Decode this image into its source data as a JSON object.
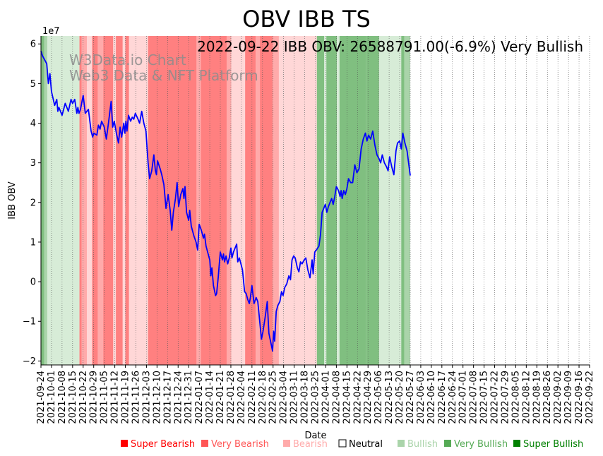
{
  "chart_data": {
    "type": "line",
    "title": "OBV IBB TS",
    "annotation": "2022-09-22 IBB OBV: 26588791.00(-6.9%) Very Bullish",
    "watermark": [
      "W3Data.io Chart",
      "Web3 Data & NFT Platform"
    ],
    "xlabel": "Date",
    "ylabel": "IBB OBV",
    "y_exponent": "1e7",
    "y_ticks": [
      "−2",
      "−1",
      "0",
      "1",
      "2",
      "3",
      "4",
      "5",
      "6"
    ],
    "ylim": [
      -2.1,
      6.2
    ],
    "grid": "vertical-dotted",
    "line_color": "#0000ff",
    "x_ticks": [
      "2021-09-24",
      "2021-10-01",
      "2021-10-08",
      "2021-10-15",
      "2021-10-22",
      "2021-10-29",
      "2021-11-05",
      "2021-11-12",
      "2021-11-19",
      "2021-11-26",
      "2021-12-03",
      "2021-12-10",
      "2021-12-17",
      "2021-12-24",
      "2021-12-31",
      "2022-01-07",
      "2022-01-14",
      "2022-01-21",
      "2022-01-28",
      "2022-02-04",
      "2022-02-11",
      "2022-02-18",
      "2022-02-25",
      "2022-03-04",
      "2022-03-11",
      "2022-03-18",
      "2022-03-25",
      "2022-04-01",
      "2022-04-08",
      "2022-04-15",
      "2022-04-22",
      "2022-04-29",
      "2022-05-06",
      "2022-05-13",
      "2022-05-20",
      "2022-05-27",
      "2022-06-03",
      "2022-06-10",
      "2022-06-17",
      "2022-06-24",
      "2022-07-01",
      "2022-07-08",
      "2022-07-15",
      "2022-07-22",
      "2022-07-29",
      "2022-08-05",
      "2022-08-12",
      "2022-08-19",
      "2022-08-26",
      "2022-09-02",
      "2022-09-09",
      "2022-09-16",
      "2022-09-22"
    ],
    "series": [
      {
        "values": [
          [
            0,
            5.82
          ],
          [
            0.15,
            5.7
          ],
          [
            0.35,
            5.6
          ],
          [
            0.55,
            5.5
          ],
          [
            0.7,
            5.0
          ],
          [
            0.85,
            5.25
          ],
          [
            1.0,
            4.8
          ],
          [
            1.3,
            4.45
          ],
          [
            1.5,
            4.6
          ],
          [
            1.6,
            4.3
          ],
          [
            1.7,
            4.4
          ],
          [
            1.85,
            4.3
          ],
          [
            2.0,
            4.2
          ],
          [
            2.3,
            4.5
          ],
          [
            2.6,
            4.3
          ],
          [
            2.85,
            4.6
          ],
          [
            3.0,
            4.5
          ],
          [
            3.2,
            4.6
          ],
          [
            3.4,
            4.25
          ],
          [
            3.5,
            4.4
          ],
          [
            3.6,
            4.25
          ],
          [
            3.75,
            4.35
          ],
          [
            4.0,
            4.7
          ],
          [
            4.2,
            4.25
          ],
          [
            4.5,
            4.35
          ],
          [
            4.75,
            3.8
          ],
          [
            4.9,
            3.65
          ],
          [
            5.0,
            3.75
          ],
          [
            5.3,
            3.7
          ],
          [
            5.45,
            3.95
          ],
          [
            5.6,
            3.85
          ],
          [
            5.75,
            4.05
          ],
          [
            6.0,
            3.9
          ],
          [
            6.2,
            3.6
          ],
          [
            6.4,
            4.0
          ],
          [
            6.65,
            4.55
          ],
          [
            6.8,
            3.9
          ],
          [
            6.95,
            4.05
          ],
          [
            7.15,
            3.75
          ],
          [
            7.35,
            3.5
          ],
          [
            7.5,
            3.9
          ],
          [
            7.65,
            3.65
          ],
          [
            7.85,
            4.0
          ],
          [
            7.95,
            3.75
          ],
          [
            8.05,
            4.05
          ],
          [
            8.15,
            3.8
          ],
          [
            8.3,
            4.2
          ],
          [
            8.5,
            4.05
          ],
          [
            8.65,
            4.15
          ],
          [
            8.8,
            4.1
          ],
          [
            8.95,
            4.25
          ],
          [
            9.2,
            4.1
          ],
          [
            9.35,
            4.0
          ],
          [
            9.55,
            4.3
          ],
          [
            9.75,
            4.0
          ],
          [
            9.95,
            3.8
          ],
          [
            10.15,
            3.0
          ],
          [
            10.3,
            2.6
          ],
          [
            10.5,
            2.8
          ],
          [
            10.7,
            3.2
          ],
          [
            10.85,
            2.8
          ],
          [
            10.95,
            2.7
          ],
          [
            11.05,
            3.05
          ],
          [
            11.3,
            2.85
          ],
          [
            11.45,
            2.7
          ],
          [
            11.65,
            2.45
          ],
          [
            11.85,
            1.85
          ],
          [
            12.05,
            2.2
          ],
          [
            12.25,
            1.8
          ],
          [
            12.4,
            1.3
          ],
          [
            12.55,
            1.75
          ],
          [
            12.75,
            2.1
          ],
          [
            12.9,
            2.5
          ],
          [
            13.05,
            1.9
          ],
          [
            13.25,
            2.2
          ],
          [
            13.45,
            2.35
          ],
          [
            13.55,
            2.1
          ],
          [
            13.65,
            2.4
          ],
          [
            13.8,
            1.75
          ],
          [
            14.0,
            1.55
          ],
          [
            14.1,
            1.8
          ],
          [
            14.25,
            1.4
          ],
          [
            14.5,
            1.15
          ],
          [
            14.7,
            1.0
          ],
          [
            14.85,
            0.8
          ],
          [
            15.0,
            1.45
          ],
          [
            15.2,
            1.3
          ],
          [
            15.4,
            1.1
          ],
          [
            15.5,
            1.2
          ],
          [
            15.65,
            0.9
          ],
          [
            15.85,
            0.7
          ],
          [
            16.0,
            0.55
          ],
          [
            16.1,
            0.15
          ],
          [
            16.2,
            0.35
          ],
          [
            16.35,
            -0.1
          ],
          [
            16.55,
            -0.35
          ],
          [
            16.65,
            -0.3
          ],
          [
            16.8,
            0.1
          ],
          [
            17.0,
            0.75
          ],
          [
            17.2,
            0.55
          ],
          [
            17.3,
            0.7
          ],
          [
            17.4,
            0.5
          ],
          [
            17.55,
            0.65
          ],
          [
            17.7,
            0.45
          ],
          [
            17.85,
            0.6
          ],
          [
            18.0,
            0.85
          ],
          [
            18.1,
            0.6
          ],
          [
            18.25,
            0.75
          ],
          [
            18.4,
            0.85
          ],
          [
            18.55,
            0.95
          ],
          [
            18.65,
            0.5
          ],
          [
            18.8,
            0.6
          ],
          [
            18.95,
            0.45
          ],
          [
            19.1,
            0.3
          ],
          [
            19.3,
            -0.25
          ],
          [
            19.45,
            -0.3
          ],
          [
            19.6,
            -0.45
          ],
          [
            19.75,
            -0.55
          ],
          [
            19.85,
            -0.4
          ],
          [
            20.0,
            -0.1
          ],
          [
            20.2,
            -0.55
          ],
          [
            20.4,
            -0.4
          ],
          [
            20.55,
            -0.5
          ],
          [
            20.75,
            -1.05
          ],
          [
            20.9,
            -1.45
          ],
          [
            21.05,
            -1.25
          ],
          [
            21.25,
            -0.9
          ],
          [
            21.45,
            -0.5
          ],
          [
            21.6,
            -1.3
          ],
          [
            21.8,
            -1.55
          ],
          [
            21.95,
            -1.75
          ],
          [
            22.05,
            -1.25
          ],
          [
            22.15,
            -1.5
          ],
          [
            22.3,
            -0.75
          ],
          [
            22.45,
            -0.6
          ],
          [
            22.65,
            -0.5
          ],
          [
            22.8,
            -0.25
          ],
          [
            22.95,
            -0.35
          ],
          [
            23.1,
            -0.15
          ],
          [
            23.3,
            -0.05
          ],
          [
            23.5,
            0.15
          ],
          [
            23.65,
            0.05
          ],
          [
            23.8,
            0.55
          ],
          [
            23.95,
            0.65
          ],
          [
            24.1,
            0.6
          ],
          [
            24.3,
            0.35
          ],
          [
            24.45,
            0.25
          ],
          [
            24.6,
            0.5
          ],
          [
            24.75,
            0.45
          ],
          [
            24.95,
            0.55
          ],
          [
            25.1,
            0.6
          ],
          [
            25.3,
            0.3
          ],
          [
            25.5,
            0.1
          ],
          [
            25.7,
            0.55
          ],
          [
            25.8,
            0.2
          ],
          [
            25.95,
            0.75
          ],
          [
            26.1,
            0.8
          ],
          [
            26.35,
            0.9
          ],
          [
            26.5,
            1.2
          ],
          [
            26.65,
            1.75
          ],
          [
            26.8,
            1.85
          ],
          [
            26.95,
            1.95
          ],
          [
            27.1,
            1.75
          ],
          [
            27.25,
            1.9
          ],
          [
            27.4,
            2.0
          ],
          [
            27.55,
            2.1
          ],
          [
            27.7,
            1.95
          ],
          [
            27.85,
            2.15
          ],
          [
            28.0,
            2.4
          ],
          [
            28.2,
            2.3
          ],
          [
            28.35,
            2.15
          ],
          [
            28.45,
            2.3
          ],
          [
            28.55,
            2.1
          ],
          [
            28.7,
            2.3
          ],
          [
            28.85,
            2.2
          ],
          [
            29.0,
            2.35
          ],
          [
            29.15,
            2.6
          ],
          [
            29.35,
            2.5
          ],
          [
            29.55,
            2.5
          ],
          [
            29.75,
            2.95
          ],
          [
            29.95,
            2.75
          ],
          [
            30.15,
            2.85
          ],
          [
            30.35,
            3.35
          ],
          [
            30.55,
            3.6
          ],
          [
            30.75,
            3.75
          ],
          [
            30.9,
            3.55
          ],
          [
            31.05,
            3.7
          ],
          [
            31.25,
            3.6
          ],
          [
            31.45,
            3.8
          ],
          [
            31.65,
            3.45
          ],
          [
            31.85,
            3.2
          ],
          [
            32.05,
            3.1
          ],
          [
            32.2,
            3.0
          ],
          [
            32.35,
            3.2
          ],
          [
            32.55,
            3.0
          ],
          [
            32.75,
            2.9
          ],
          [
            32.9,
            2.8
          ],
          [
            33.05,
            3.15
          ],
          [
            33.25,
            2.9
          ],
          [
            33.45,
            2.7
          ],
          [
            33.65,
            3.3
          ],
          [
            33.8,
            3.5
          ],
          [
            34.0,
            3.55
          ],
          [
            34.15,
            3.35
          ],
          [
            34.3,
            3.75
          ],
          [
            34.5,
            3.5
          ],
          [
            34.7,
            3.3
          ],
          [
            34.85,
            3.0
          ],
          [
            35.0,
            2.68
          ]
        ]
      }
    ],
    "legend": [
      {
        "label": "Super Bearish",
        "color": "#ff0000"
      },
      {
        "label": "Very Bearish",
        "color": "#ff5555"
      },
      {
        "label": "Bearish",
        "color": "#ffaaaa"
      },
      {
        "label": "Neutral",
        "color": "#000000"
      },
      {
        "label": "Bullish",
        "color": "#aad4aa"
      },
      {
        "label": "Very Bullish",
        "color": "#55aa55"
      },
      {
        "label": "Super Bullish",
        "color": "#008000"
      }
    ],
    "background_bands": [
      {
        "from": 0,
        "to": 0.3,
        "level": "very_bullish"
      },
      {
        "from": 0.3,
        "to": 0.6,
        "level": "bullish_mid"
      },
      {
        "from": 0.6,
        "to": 3.65,
        "level": "bullish"
      },
      {
        "from": 3.65,
        "to": 3.85,
        "level": "very_bearish"
      },
      {
        "from": 3.85,
        "to": 4.35,
        "level": "bearish"
      },
      {
        "from": 4.35,
        "to": 4.85,
        "level": "bearish_light"
      },
      {
        "from": 4.85,
        "to": 5.4,
        "level": "very_bearish"
      },
      {
        "from": 5.4,
        "to": 5.9,
        "level": "bearish"
      },
      {
        "from": 5.9,
        "to": 6.85,
        "level": "very_bearish"
      },
      {
        "from": 6.85,
        "to": 7.1,
        "level": "bearish_light"
      },
      {
        "from": 7.1,
        "to": 7.75,
        "level": "very_bearish"
      },
      {
        "from": 7.75,
        "to": 8.0,
        "level": "bearish_light"
      },
      {
        "from": 8.0,
        "to": 8.35,
        "level": "very_bearish"
      },
      {
        "from": 8.35,
        "to": 10.15,
        "level": "bearish_light"
      },
      {
        "from": 10.15,
        "to": 14.75,
        "level": "very_bearish"
      },
      {
        "from": 14.75,
        "to": 15.15,
        "level": "bearish"
      },
      {
        "from": 15.15,
        "to": 17.6,
        "level": "very_bearish"
      },
      {
        "from": 17.6,
        "to": 18.05,
        "level": "bearish"
      },
      {
        "from": 18.05,
        "to": 19.35,
        "level": "bearish_light"
      },
      {
        "from": 19.35,
        "to": 20.35,
        "level": "very_bearish"
      },
      {
        "from": 20.35,
        "to": 20.75,
        "level": "bearish"
      },
      {
        "from": 20.75,
        "to": 21.95,
        "level": "very_bearish"
      },
      {
        "from": 21.95,
        "to": 22.55,
        "level": "bearish"
      },
      {
        "from": 22.55,
        "to": 26.15,
        "level": "bearish_light"
      },
      {
        "from": 26.15,
        "to": 26.85,
        "level": "very_bullish"
      },
      {
        "from": 26.85,
        "to": 27.05,
        "level": "bullish"
      },
      {
        "from": 27.05,
        "to": 28.05,
        "level": "very_bullish"
      },
      {
        "from": 28.05,
        "to": 28.3,
        "level": "bullish"
      },
      {
        "from": 28.3,
        "to": 30.8,
        "level": "very_bullish"
      },
      {
        "from": 30.8,
        "to": 32.05,
        "level": "very_bullish"
      },
      {
        "from": 32.05,
        "to": 34.15,
        "level": "bullish"
      },
      {
        "from": 34.15,
        "to": 34.45,
        "level": "very_bullish"
      },
      {
        "from": 34.45,
        "to": 35.0,
        "level": "bullish_mid"
      }
    ],
    "band_colors": {
      "very_bearish": "#ff8080",
      "bearish": "#ffaaaa",
      "bearish_light": "#ffd7d7",
      "bullish": "#d7ecd7",
      "bullish_mid": "#aad4aa",
      "very_bullish": "#80bf80"
    }
  }
}
